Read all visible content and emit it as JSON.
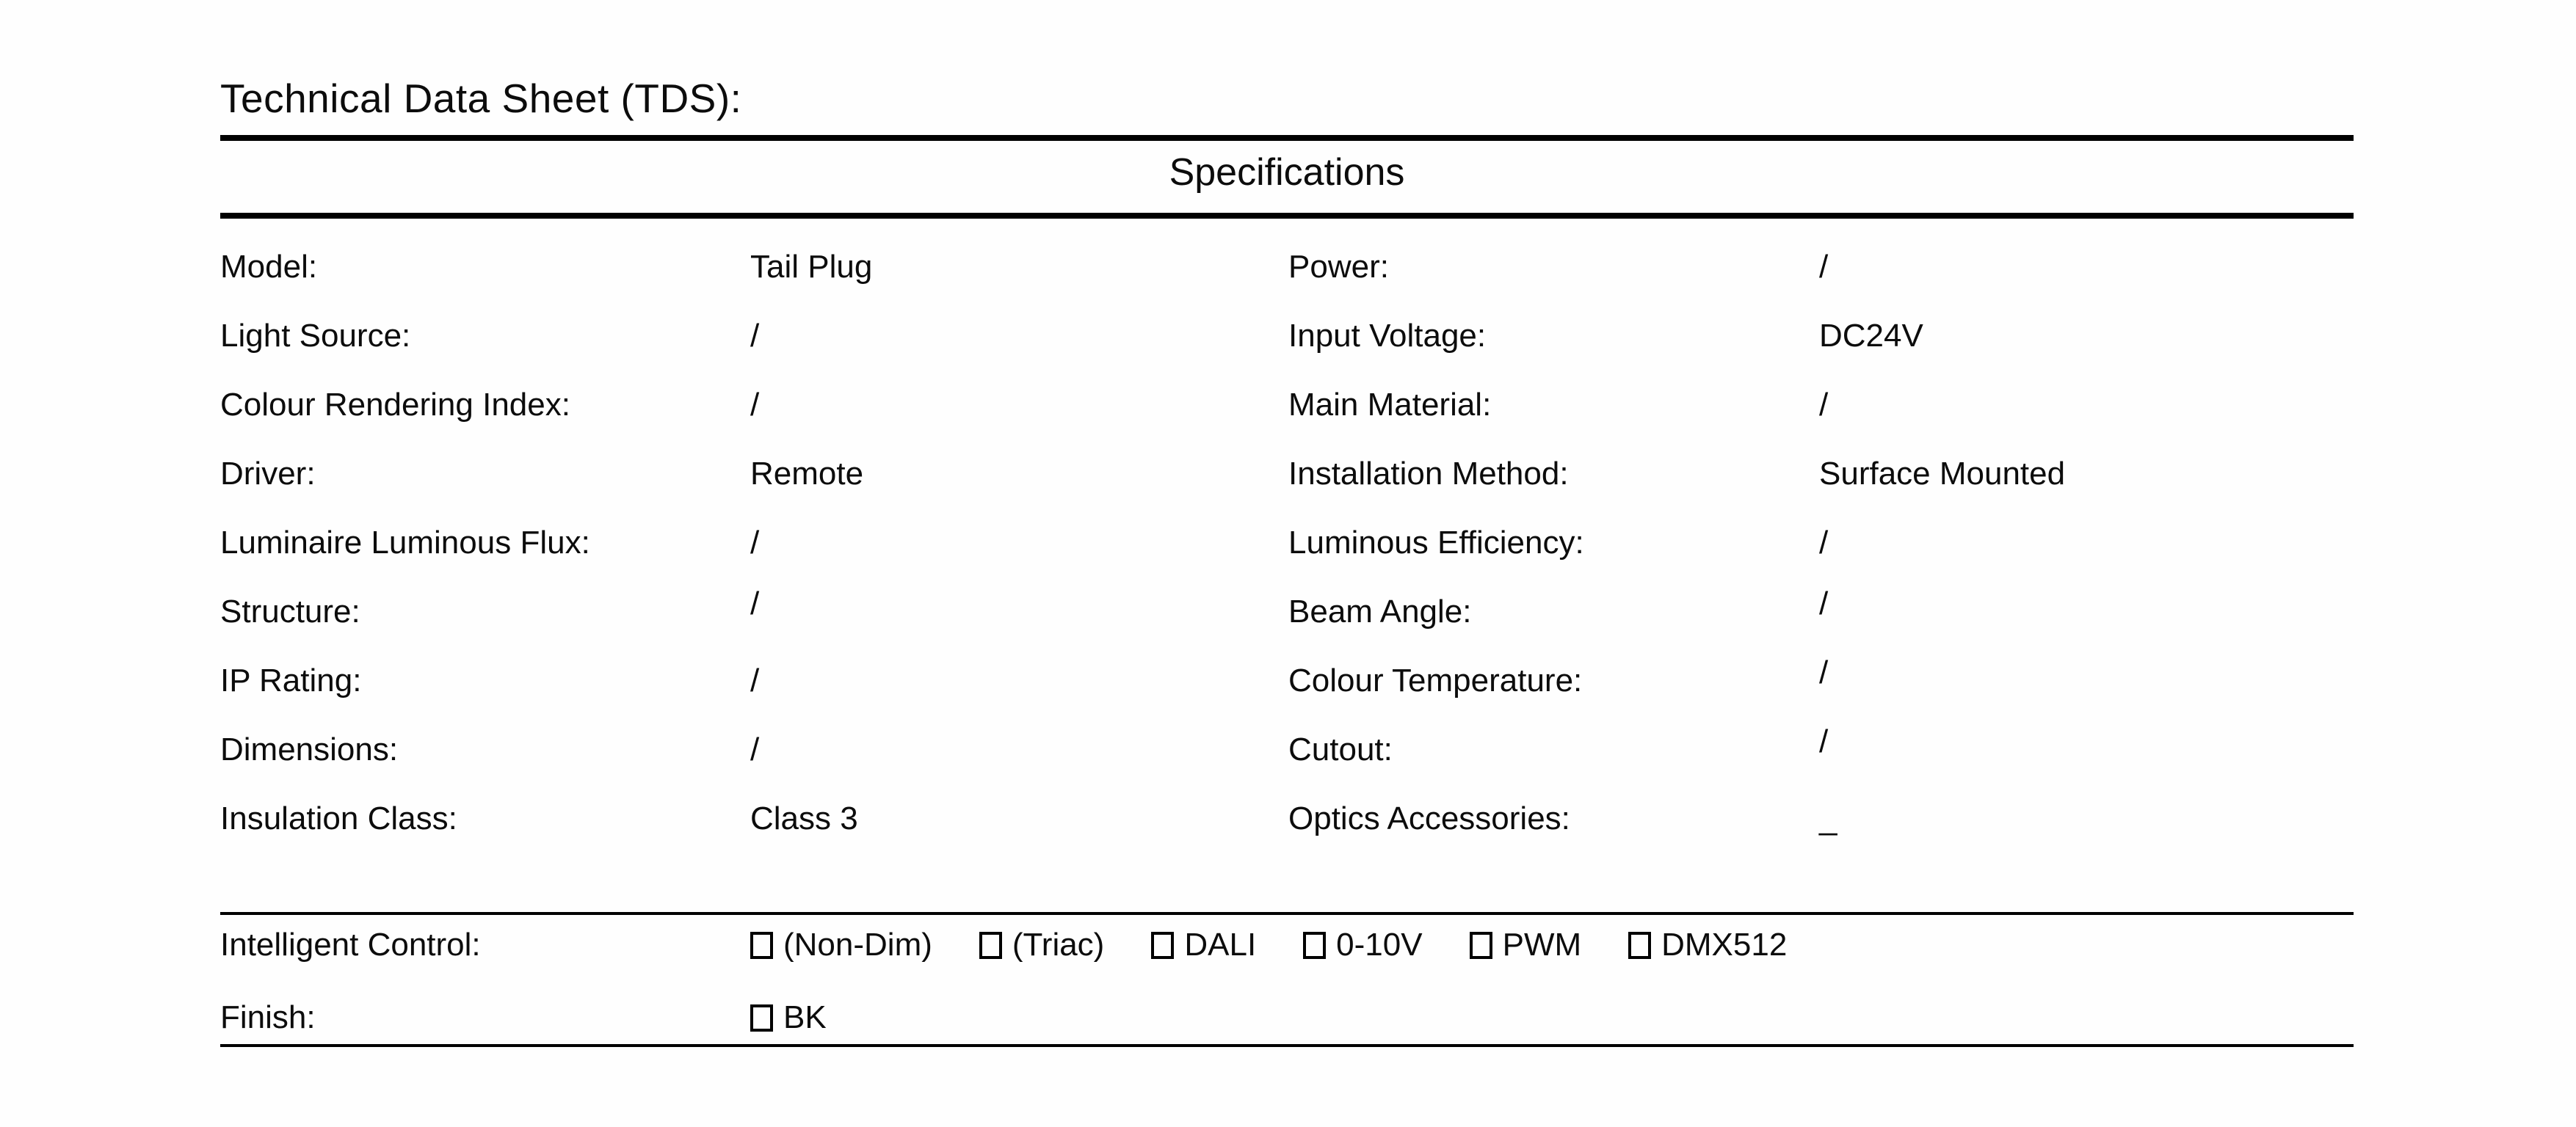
{
  "title": "Technical Data Sheet (TDS):",
  "table": {
    "header": "Specifications",
    "rows": [
      {
        "left_label": "Model:",
        "left_value": "Tail Plug",
        "right_label": "Power:",
        "right_value": "/"
      },
      {
        "left_label": "Light Source:",
        "left_value": "/",
        "right_label": "Input Voltage:",
        "right_value": "DC24V"
      },
      {
        "left_label": "Colour Rendering Index:",
        "left_value": "/",
        "right_label": "Main Material:",
        "right_value": "/"
      },
      {
        "left_label": "Driver:",
        "left_value": "Remote",
        "right_label": "Installation Method:",
        "right_value": "Surface Mounted"
      },
      {
        "left_label": "Luminaire Luminous Flux:",
        "left_value": "/",
        "right_label": "Luminous Efficiency:",
        "right_value": "/"
      },
      {
        "left_label": "Structure:",
        "left_value": "/",
        "right_label": "Beam Angle:",
        "right_value": "/"
      },
      {
        "left_label": "IP Rating:",
        "left_value": "/",
        "right_label": "Colour Temperature:",
        "right_value": "/"
      },
      {
        "left_label": "Dimensions:",
        "left_value": "/",
        "right_label": "Cutout:",
        "right_value": "/"
      },
      {
        "left_label": "Insulation Class:",
        "left_value": "Class 3",
        "right_label": "Optics Accessories:",
        "right_value": "_"
      }
    ]
  },
  "controls": {
    "intelligent_control": {
      "label": "Intelligent Control:",
      "options": [
        {
          "label": "(Non-Dim)",
          "checked": false
        },
        {
          "label": "(Triac)",
          "checked": false
        },
        {
          "label": "DALI",
          "checked": false
        },
        {
          "label": "0-10V",
          "checked": false
        },
        {
          "label": "PWM",
          "checked": false
        },
        {
          "label": "DMX512",
          "checked": false
        }
      ]
    },
    "finish": {
      "label": "Finish:",
      "options": [
        {
          "label": "BK",
          "checked": false
        }
      ]
    }
  },
  "colors": {
    "text": "#0c0c0c",
    "rule": "#000000",
    "background": "#fefefe"
  }
}
